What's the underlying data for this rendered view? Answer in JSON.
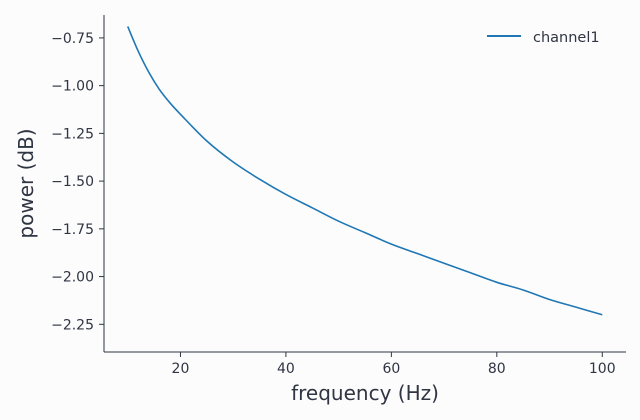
{
  "chart_data": {
    "type": "line",
    "title": "",
    "xlabel": "frequency (Hz)",
    "ylabel": "power (dB)",
    "xlim": [
      5.5,
      104.5
    ],
    "ylim": [
      -2.395,
      -0.63
    ],
    "xticks": [
      20,
      40,
      60,
      80,
      100
    ],
    "xtick_labels": [
      "20",
      "40",
      "60",
      "80",
      "100"
    ],
    "yticks": [
      -0.75,
      -1.0,
      -1.25,
      -1.5,
      -1.75,
      -2.0,
      -2.25
    ],
    "ytick_labels": [
      "−0.75",
      "−1.00",
      "−1.25",
      "−1.50",
      "−1.75",
      "−2.00",
      "−2.25"
    ],
    "grid": false,
    "legend_position": "top-right",
    "colors": {
      "channel1": "#1f77b4",
      "axis": "#2f3542",
      "background": "#fcfcfc"
    },
    "series": [
      {
        "name": "channel1",
        "x": [
          10,
          12,
          14,
          16,
          18,
          20,
          25,
          30,
          35,
          40,
          45,
          50,
          55,
          60,
          65,
          70,
          75,
          80,
          85,
          90,
          95,
          100
        ],
        "values": [
          -0.69,
          -0.82,
          -0.93,
          -1.02,
          -1.09,
          -1.15,
          -1.29,
          -1.4,
          -1.49,
          -1.57,
          -1.64,
          -1.71,
          -1.77,
          -1.83,
          -1.88,
          -1.93,
          -1.98,
          -2.03,
          -2.07,
          -2.12,
          -2.16,
          -2.2
        ]
      }
    ]
  }
}
